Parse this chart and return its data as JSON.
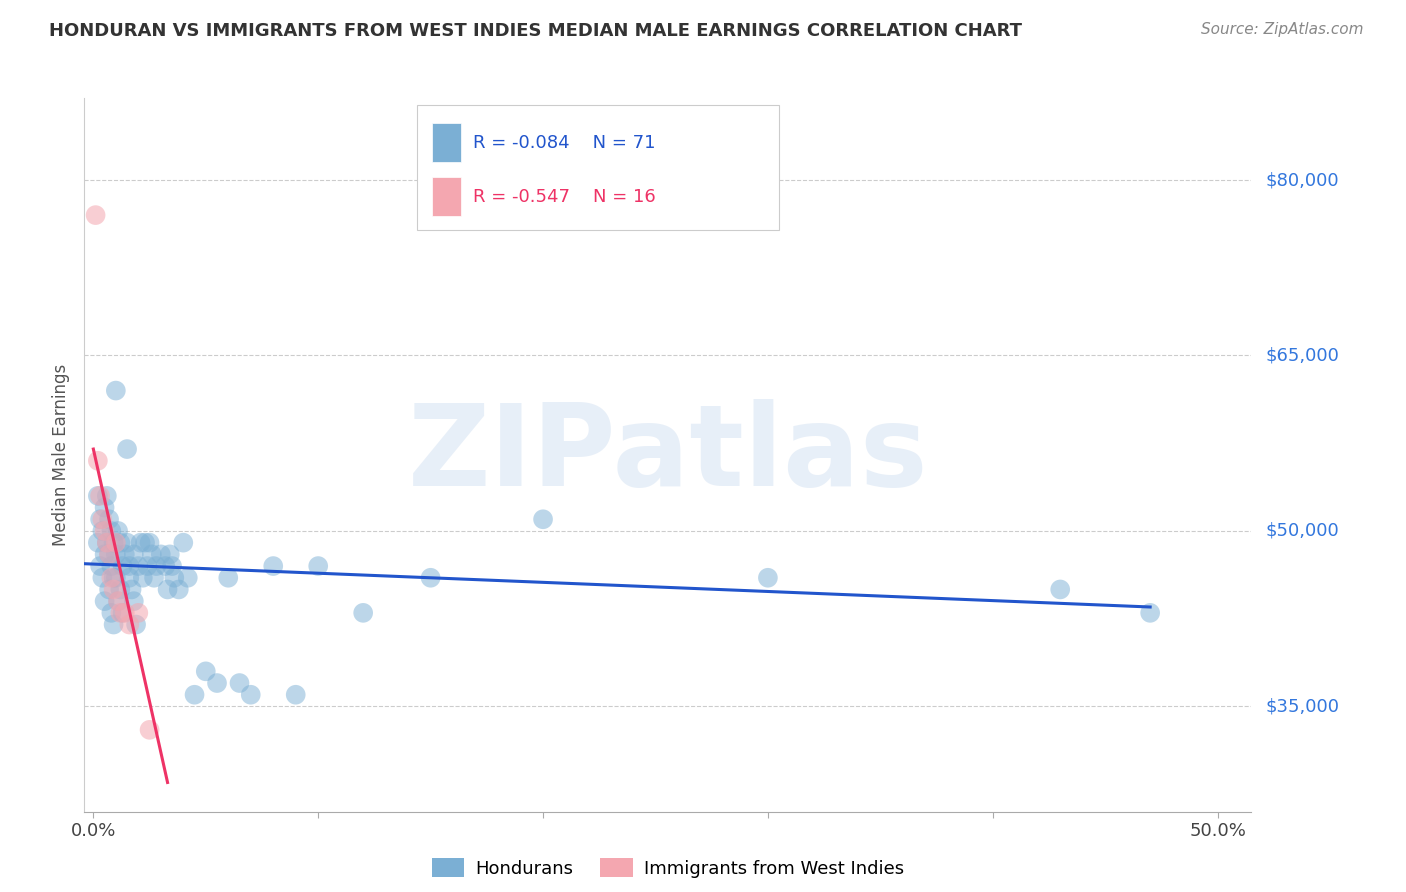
{
  "title": "HONDURAN VS IMMIGRANTS FROM WEST INDIES MEDIAN MALE EARNINGS CORRELATION CHART",
  "source": "Source: ZipAtlas.com",
  "ylabel": "Median Male Earnings",
  "ytick_labels": [
    "$35,000",
    "$50,000",
    "$65,000",
    "$80,000"
  ],
  "ytick_values": [
    35000,
    50000,
    65000,
    80000
  ],
  "ymin": 26000,
  "ymax": 87000,
  "xmin": -0.004,
  "xmax": 0.515,
  "xticks": [
    0.0,
    0.1,
    0.2,
    0.3,
    0.4,
    0.5
  ],
  "xticklabels": [
    "0.0%",
    "",
    "",
    "",
    "",
    "50.0%"
  ],
  "watermark": "ZIPatlas",
  "color_blue": "#7BAFD4",
  "color_pink": "#F4A7B0",
  "line_blue": "#2255CC",
  "line_pink": "#EE3366",
  "title_color": "#333333",
  "source_color": "#888888",
  "ylabel_color": "#555555",
  "ytick_color": "#3377DD",
  "grid_color": "#CCCCCC",
  "hondurans_x": [
    0.002,
    0.002,
    0.003,
    0.003,
    0.004,
    0.004,
    0.005,
    0.005,
    0.005,
    0.006,
    0.006,
    0.007,
    0.007,
    0.007,
    0.008,
    0.008,
    0.008,
    0.009,
    0.009,
    0.009,
    0.01,
    0.01,
    0.01,
    0.011,
    0.011,
    0.012,
    0.012,
    0.013,
    0.013,
    0.014,
    0.015,
    0.015,
    0.016,
    0.016,
    0.017,
    0.018,
    0.018,
    0.019,
    0.02,
    0.021,
    0.022,
    0.023,
    0.024,
    0.025,
    0.026,
    0.027,
    0.028,
    0.03,
    0.032,
    0.033,
    0.034,
    0.035,
    0.036,
    0.038,
    0.04,
    0.042,
    0.045,
    0.05,
    0.055,
    0.06,
    0.065,
    0.07,
    0.08,
    0.09,
    0.1,
    0.12,
    0.15,
    0.2,
    0.3,
    0.43,
    0.47
  ],
  "hondurans_y": [
    49000,
    53000,
    51000,
    47000,
    50000,
    46000,
    52000,
    48000,
    44000,
    53000,
    49000,
    51000,
    48000,
    45000,
    50000,
    47000,
    43000,
    49000,
    46000,
    42000,
    48000,
    62000,
    46000,
    50000,
    44000,
    49000,
    45000,
    47000,
    43000,
    48000,
    57000,
    49000,
    47000,
    46000,
    45000,
    48000,
    44000,
    42000,
    47000,
    49000,
    46000,
    49000,
    47000,
    49000,
    48000,
    46000,
    47000,
    48000,
    47000,
    45000,
    48000,
    47000,
    46000,
    45000,
    49000,
    46000,
    36000,
    38000,
    37000,
    46000,
    37000,
    36000,
    47000,
    36000,
    47000,
    43000,
    46000,
    51000,
    46000,
    45000,
    43000
  ],
  "westindies_x": [
    0.001,
    0.002,
    0.003,
    0.004,
    0.005,
    0.006,
    0.007,
    0.008,
    0.009,
    0.01,
    0.011,
    0.012,
    0.014,
    0.016,
    0.02,
    0.025
  ],
  "westindies_y": [
    77000,
    56000,
    53000,
    51000,
    50000,
    49000,
    48000,
    46000,
    45000,
    49000,
    44000,
    43000,
    43000,
    42000,
    43000,
    33000
  ],
  "blue_line_x": [
    -0.004,
    0.47
  ],
  "blue_line_y": [
    47200,
    43500
  ],
  "pink_line_x": [
    0.0,
    0.033
  ],
  "pink_line_y": [
    57000,
    28500
  ]
}
